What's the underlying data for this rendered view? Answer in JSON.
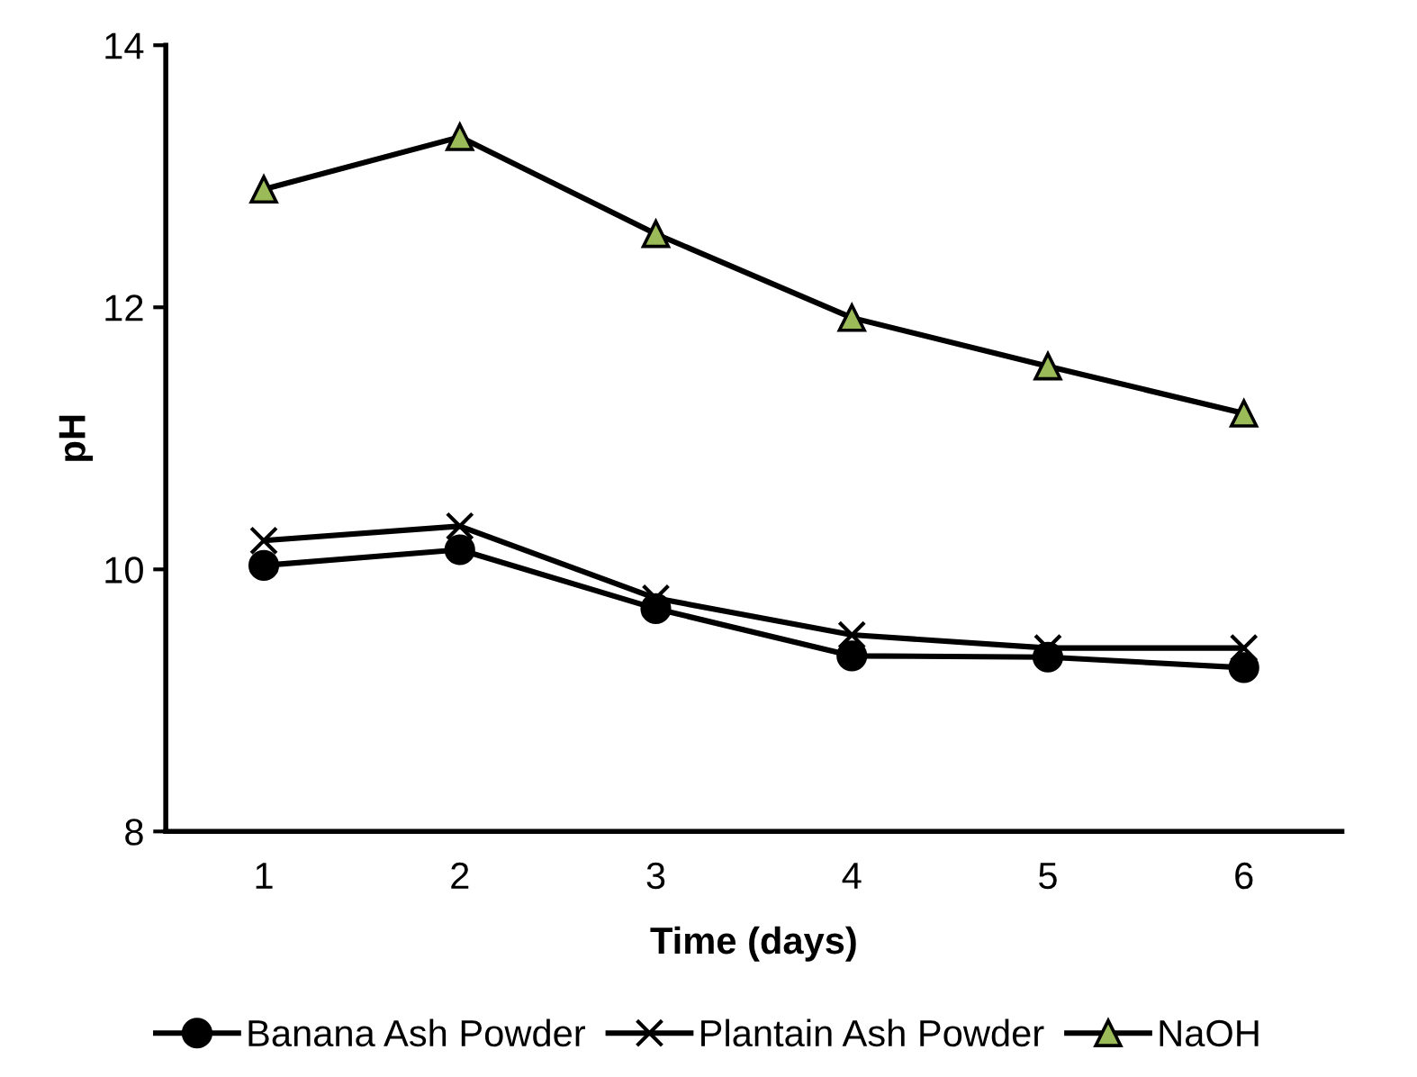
{
  "chart_data": {
    "type": "line",
    "xlabel": "Time (days)",
    "ylabel": "pH",
    "categories": [
      "1",
      "2",
      "3",
      "4",
      "5",
      "6"
    ],
    "series": [
      {
        "name": "Banana Ash Powder",
        "color": "#000000",
        "marker": "circle",
        "values": [
          10.03,
          10.15,
          9.7,
          9.34,
          9.33,
          9.25
        ]
      },
      {
        "name": "Plantain Ash Powder",
        "color": "#000000",
        "marker": "cross",
        "values": [
          10.22,
          10.33,
          9.78,
          9.5,
          9.4,
          9.4
        ]
      },
      {
        "name": "NaOH",
        "color": "#9bbb59",
        "marker": "triangle",
        "values": [
          12.9,
          13.3,
          12.56,
          11.92,
          11.55,
          11.19
        ]
      }
    ],
    "ylim": [
      8,
      14
    ],
    "yticks": [
      8,
      10,
      12,
      14
    ],
    "grid": false,
    "legend": "bottom",
    "line_style": "solid"
  }
}
